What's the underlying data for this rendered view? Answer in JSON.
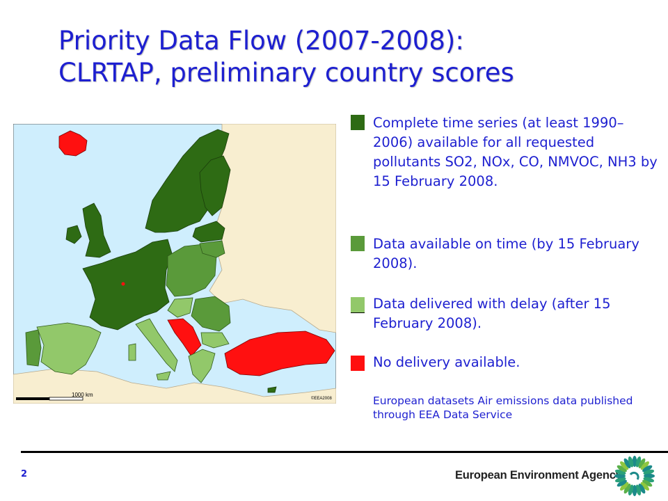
{
  "title": {
    "line1": "Priority Data Flow (2007-2008):",
    "line2": "CLRTAP, preliminary country scores"
  },
  "colors": {
    "title": "#1d1fd0",
    "complete": "#2e6b14",
    "on_time": "#5a9a3a",
    "delayed": "#92c86a",
    "no_delivery": "#ff1010",
    "sea": "#cfeefd",
    "other_land": "#f8eed0"
  },
  "map": {
    "scale_label": "1000 km",
    "copyright": "©EEA2008"
  },
  "legend": [
    {
      "key": "complete",
      "text": "Complete time series (at least 1990–2006) available for all requested pollutants SO2, NOx, CO, NMVOC, NH3 by 15 February 2008."
    },
    {
      "key": "on_time",
      "text": "Data available on time (by 15 February 2008)."
    },
    {
      "key": "delayed",
      "text": "Data delivered with delay (after 15 February 2008)."
    },
    {
      "key": "no_delivery",
      "text": "No delivery available."
    }
  ],
  "source": "European datasets Air emissions data published through EEA Data Service",
  "footer": {
    "page_number": "2",
    "agency": "European Environment Agency"
  }
}
